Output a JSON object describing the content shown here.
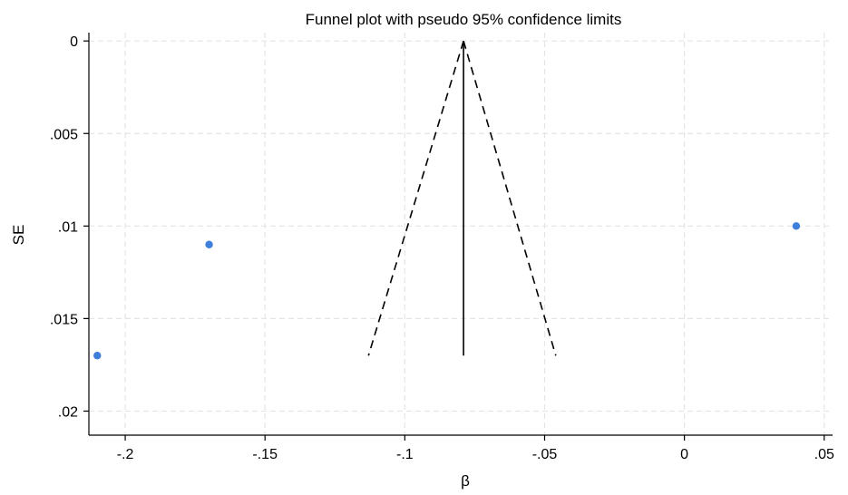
{
  "chart_data": {
    "type": "scatter",
    "title": "Funnel plot with pseudo 95% confidence limits",
    "xlabel": "β",
    "ylabel": "SE",
    "xlim": [
      -0.213,
      0.053
    ],
    "ylim": [
      0.0213,
      -0.00045
    ],
    "y_inverted": true,
    "grid": true,
    "x_ticks": [
      {
        "value": -0.2,
        "label": "-.2"
      },
      {
        "value": -0.15,
        "label": "-.15"
      },
      {
        "value": -0.1,
        "label": "-.1"
      },
      {
        "value": -0.05,
        "label": "-.05"
      },
      {
        "value": 0,
        "label": "0"
      },
      {
        "value": 0.05,
        "label": ".05"
      }
    ],
    "y_ticks": [
      {
        "value": 0,
        "label": "0"
      },
      {
        "value": 0.005,
        "label": ".005"
      },
      {
        "value": 0.01,
        "label": ".01"
      },
      {
        "value": 0.015,
        "label": ".015"
      },
      {
        "value": 0.02,
        "label": ".02"
      }
    ],
    "points": [
      {
        "x": -0.21,
        "y": 0.017
      },
      {
        "x": -0.17,
        "y": 0.011
      },
      {
        "x": 0.04,
        "y": 0.01
      }
    ],
    "point_color": "#3f7fdc",
    "pooled_estimate": {
      "x": -0.079,
      "y_range": [
        0,
        0.017
      ]
    },
    "confidence_limits": {
      "apex": {
        "x": -0.079,
        "y": 0
      },
      "lower_end": {
        "x": -0.113,
        "y": 0.017
      },
      "upper_end": {
        "x": -0.046,
        "y": 0.017
      }
    },
    "grid_color": "#e5e5e5",
    "axis_color": "#000000"
  }
}
